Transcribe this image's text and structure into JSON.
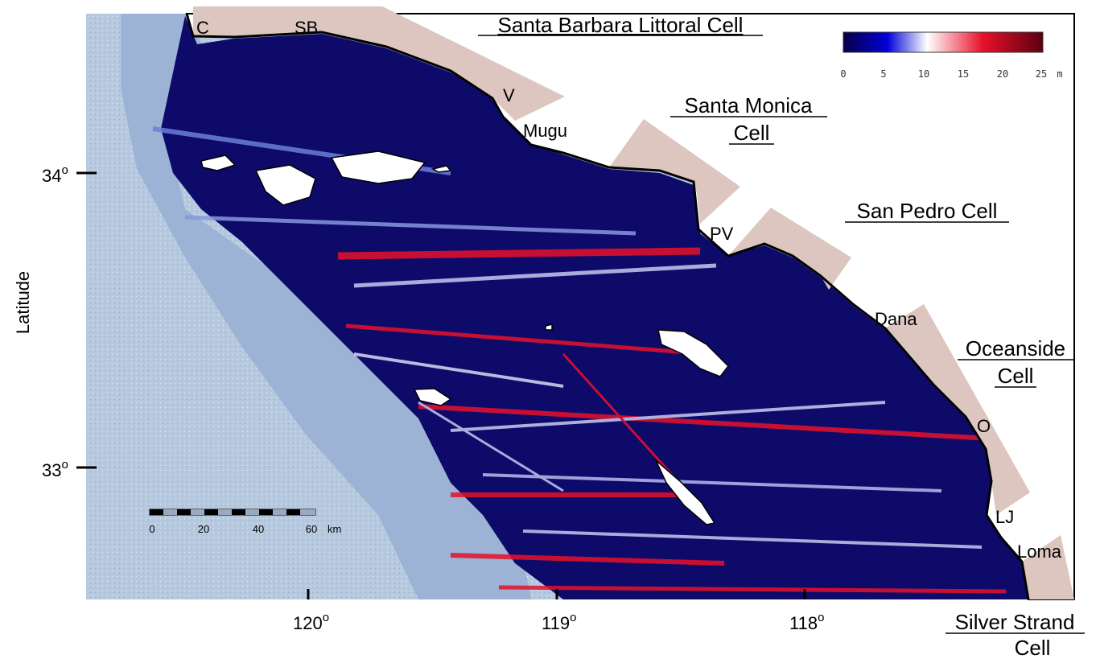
{
  "map": {
    "axis": {
      "ylabel": "Latitude",
      "lat_ticks": [
        {
          "label": "34",
          "deg_suffix": "o"
        },
        {
          "label": "33",
          "deg_suffix": "o"
        }
      ],
      "lon_ticks": [
        {
          "label": "120",
          "deg_suffix": "o"
        },
        {
          "label": "119",
          "deg_suffix": "o"
        },
        {
          "label": "118",
          "deg_suffix": "o"
        }
      ]
    },
    "cells": [
      {
        "lines": [
          "Santa Barbara Littoral Cell"
        ]
      },
      {
        "lines": [
          "Santa Monica",
          "Cell"
        ]
      },
      {
        "lines": [
          "San Pedro Cell"
        ]
      },
      {
        "lines": [
          "Oceanside",
          "Cell"
        ]
      },
      {
        "lines": [
          "Silver Strand",
          "Cell"
        ]
      }
    ],
    "places": [
      "C",
      "SB",
      "V",
      "Mugu",
      "PV",
      "Dana",
      "O",
      "LJ",
      "Loma"
    ],
    "colorbar": {
      "ticks": [
        "0",
        "5",
        "10",
        "15",
        "20",
        "25"
      ],
      "unit": "m",
      "range": [
        0,
        25
      ],
      "colors": [
        "#080048",
        "#0000d8",
        "#ffffff",
        "#e8102a",
        "#5a0010"
      ]
    },
    "scalebar": {
      "ticks": [
        "0",
        "20",
        "40",
        "60"
      ],
      "unit": "km"
    },
    "colors": {
      "ocean_offshore": "#b5c8de",
      "ocean_dark": "#0d0a6a",
      "land": "#ffffff",
      "cell_band": "#dcc6bf",
      "high_value": "#e8102a"
    }
  }
}
